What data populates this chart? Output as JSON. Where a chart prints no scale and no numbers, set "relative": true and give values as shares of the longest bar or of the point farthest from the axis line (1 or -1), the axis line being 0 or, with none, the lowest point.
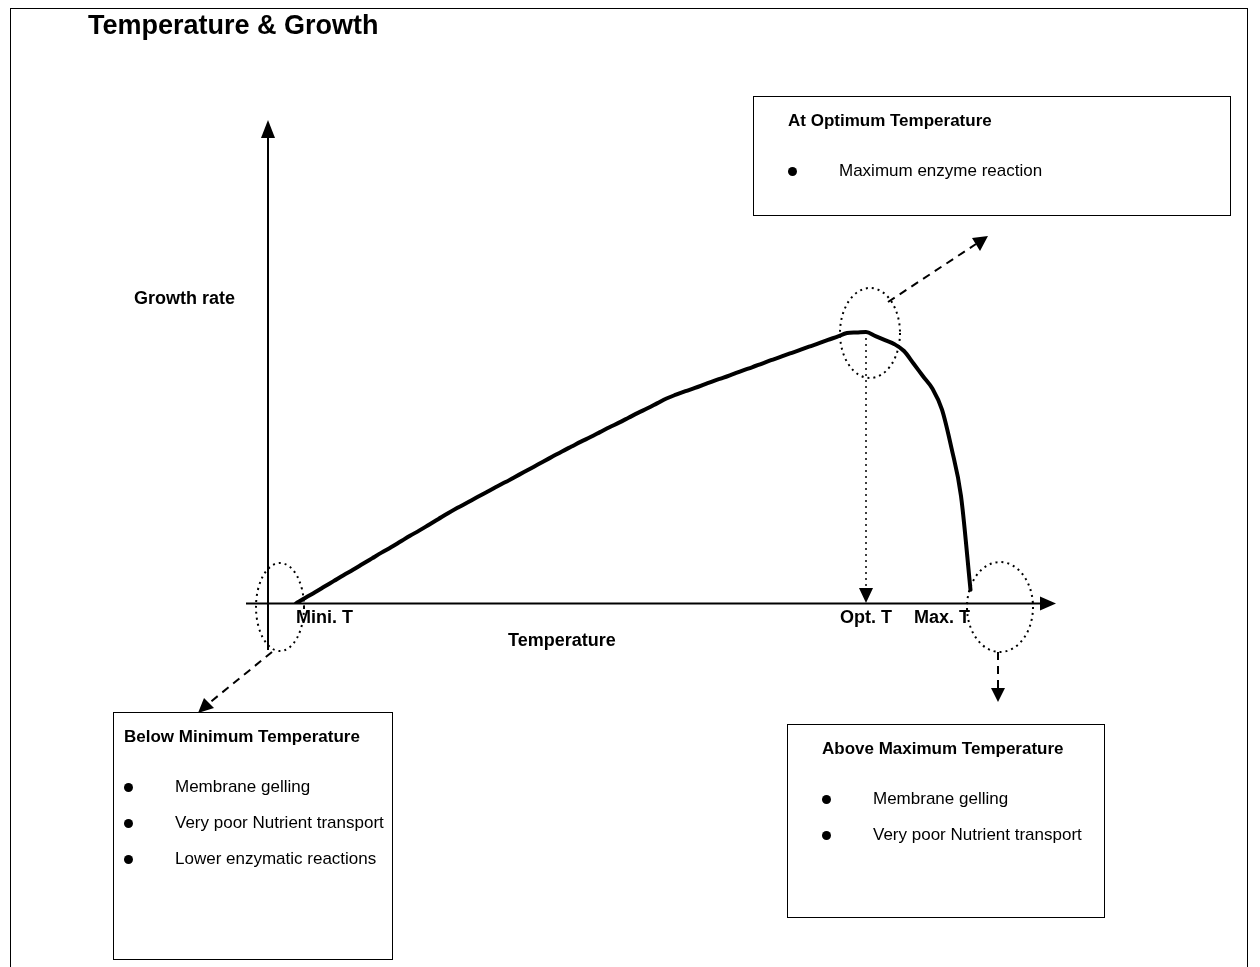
{
  "chart_data": {
    "type": "line",
    "title": "Temperature & Growth",
    "xlabel": "Temperature",
    "ylabel": "Growth rate",
    "relative": true,
    "categories": [
      null,
      null,
      null,
      null,
      null,
      "Mini. T",
      null,
      null,
      null,
      null,
      null,
      null,
      null,
      null,
      null,
      null,
      null,
      null,
      null,
      null,
      null,
      null,
      null,
      null,
      null,
      null,
      null,
      null,
      null,
      null,
      null,
      null,
      null,
      null,
      null,
      null,
      null,
      null,
      null,
      null,
      null,
      null,
      null,
      null,
      null,
      null,
      null,
      null,
      null,
      null,
      null,
      null,
      null,
      null,
      null,
      null,
      null,
      null,
      null,
      null,
      null,
      null,
      "Opt. T",
      null,
      null,
      null,
      null,
      null,
      null,
      null,
      "Max. T",
      null,
      null,
      null,
      null,
      null,
      null,
      null,
      null,
      null,
      null
    ],
    "series": [
      {
        "color": "#000000",
        "values": [
          null,
          null,
          0,
          0.021,
          0.041,
          0.062,
          0.083,
          0.104,
          0.124,
          0.145,
          0.166,
          0.187,
          0.207,
          0.228,
          0.249,
          0.269,
          0.29,
          0.311,
          0.332,
          0.352,
          0.371,
          0.39,
          0.409,
          0.428,
          0.446,
          0.465,
          0.484,
          0.503,
          0.522,
          0.541,
          0.56,
          0.578,
          0.596,
          0.613,
          0.631,
          0.649,
          0.666,
          0.684,
          0.702,
          0.719,
          0.737,
          0.755,
          0.769,
          0.782,
          0.794,
          0.807,
          0.82,
          0.832,
          0.845,
          0.858,
          0.87,
          0.883,
          0.896,
          0.908,
          0.921,
          0.933,
          0.946,
          0.958,
          0.971,
          0.983,
          0.996,
          0.998,
          1,
          0.985,
          0.97,
          0.955,
          0.93,
          0.884,
          0.837,
          0.791,
          0.714,
          0.572,
          0.396,
          0.05,
          null,
          null,
          null,
          null,
          null,
          null,
          null
        ]
      }
    ],
    "ref_lines": [
      {
        "axis": "x",
        "value": "Opt. T",
        "line_style": "dotted"
      }
    ],
    "annotations": [
      "At Optimum Temperature\nMaximum enzyme reaction",
      "Below Minimum Temperature\nMembrane gelling\nVery poor Nutrient transport\nLower enzymatic reactions",
      "Above Maximum Temperature\nMembrane gelling\nVery poor Nutrient transport"
    ]
  }
}
